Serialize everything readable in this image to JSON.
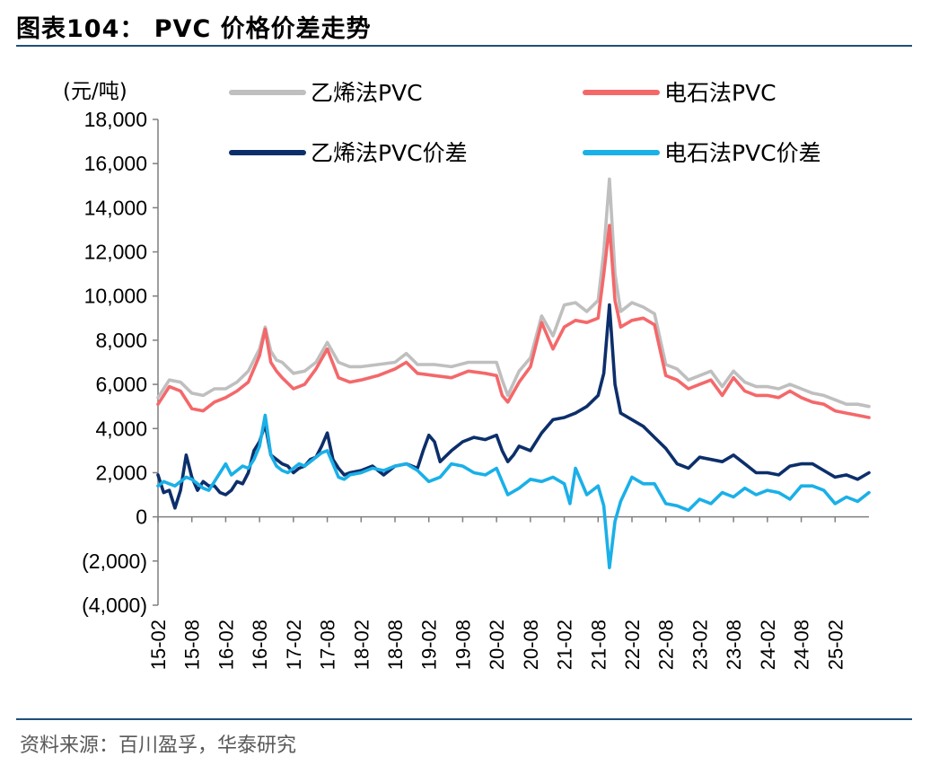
{
  "figure_title": "图表104：  PVC 价格价差走势",
  "source_note": "资料来源：百川盈孚，华泰研究",
  "chart_data": {
    "type": "line",
    "unit_label": "(元/吨)",
    "ylim": [
      -4000,
      18000
    ],
    "y_ticks": [
      18000,
      16000,
      14000,
      12000,
      10000,
      8000,
      6000,
      4000,
      2000,
      0,
      -2000,
      -4000
    ],
    "y_tick_labels": [
      "18,000",
      "16,000",
      "14,000",
      "12,000",
      "10,000",
      "8,000",
      "6,000",
      "4,000",
      "2,000",
      "0",
      "(2,000)",
      "(4,000)"
    ],
    "x_start": "2015-02",
    "x_end": "2025-08",
    "x_tick_labels": [
      "15-02",
      "15-08",
      "16-02",
      "16-08",
      "17-02",
      "17-08",
      "18-02",
      "18-08",
      "19-02",
      "19-08",
      "20-02",
      "20-08",
      "21-02",
      "21-08",
      "22-02",
      "22-08",
      "23-02",
      "23-08",
      "24-02",
      "24-08",
      "25-02"
    ],
    "legend": [
      {
        "name": "乙烯法PVC",
        "color": "#bfbfbf"
      },
      {
        "name": "电石法PVC",
        "color": "#f4686a"
      },
      {
        "name": "乙烯法PVC价差",
        "color": "#0c2f6b"
      },
      {
        "name": "电石法PVC价差",
        "color": "#1ab0e8"
      }
    ],
    "series": [
      {
        "name": "乙烯法PVC",
        "color": "#bfbfbf",
        "x": [
          "2015-02",
          "2015-04",
          "2015-06",
          "2015-08",
          "2015-10",
          "2015-12",
          "2016-02",
          "2016-04",
          "2016-06",
          "2016-08",
          "2016-09",
          "2016-10",
          "2016-11",
          "2016-12",
          "2017-02",
          "2017-04",
          "2017-06",
          "2017-08",
          "2017-10",
          "2017-12",
          "2018-02",
          "2018-05",
          "2018-08",
          "2018-10",
          "2018-12",
          "2019-03",
          "2019-06",
          "2019-09",
          "2019-12",
          "2020-02",
          "2020-03",
          "2020-04",
          "2020-06",
          "2020-08",
          "2020-10",
          "2020-12",
          "2021-02",
          "2021-04",
          "2021-06",
          "2021-08",
          "2021-09",
          "2021-10",
          "2021-11",
          "2021-12",
          "2022-02",
          "2022-04",
          "2022-06",
          "2022-08",
          "2022-10",
          "2022-12",
          "2023-02",
          "2023-04",
          "2023-06",
          "2023-08",
          "2023-10",
          "2023-12",
          "2024-02",
          "2024-04",
          "2024-06",
          "2024-08",
          "2024-10",
          "2024-12",
          "2025-02",
          "2025-04",
          "2025-06",
          "2025-08"
        ],
        "values": [
          5400,
          6200,
          6100,
          5600,
          5500,
          5800,
          5800,
          6100,
          6600,
          7600,
          8600,
          7500,
          7100,
          7000,
          6500,
          6600,
          7000,
          7900,
          7000,
          6800,
          6800,
          6900,
          7000,
          7400,
          6900,
          6900,
          6800,
          7000,
          7000,
          7000,
          6200,
          5500,
          6600,
          7200,
          9100,
          8200,
          9600,
          9700,
          9300,
          9800,
          12000,
          15300,
          11000,
          9300,
          9700,
          9500,
          9200,
          6900,
          6700,
          6200,
          6400,
          6600,
          5900,
          6600,
          6100,
          5900,
          5900,
          5800,
          6000,
          5800,
          5600,
          5500,
          5300,
          5100,
          5100,
          5000
        ]
      },
      {
        "name": "电石法PVC",
        "color": "#f4686a",
        "x": [
          "2015-02",
          "2015-04",
          "2015-06",
          "2015-08",
          "2015-10",
          "2015-12",
          "2016-02",
          "2016-04",
          "2016-06",
          "2016-08",
          "2016-09",
          "2016-10",
          "2016-11",
          "2016-12",
          "2017-02",
          "2017-04",
          "2017-06",
          "2017-08",
          "2017-10",
          "2017-12",
          "2018-02",
          "2018-05",
          "2018-08",
          "2018-10",
          "2018-12",
          "2019-03",
          "2019-06",
          "2019-09",
          "2019-12",
          "2020-02",
          "2020-03",
          "2020-04",
          "2020-06",
          "2020-08",
          "2020-10",
          "2020-12",
          "2021-02",
          "2021-04",
          "2021-06",
          "2021-08",
          "2021-09",
          "2021-10",
          "2021-11",
          "2021-12",
          "2022-02",
          "2022-04",
          "2022-06",
          "2022-08",
          "2022-10",
          "2022-12",
          "2023-02",
          "2023-04",
          "2023-06",
          "2023-08",
          "2023-10",
          "2023-12",
          "2024-02",
          "2024-04",
          "2024-06",
          "2024-08",
          "2024-10",
          "2024-12",
          "2025-02",
          "2025-04",
          "2025-06",
          "2025-08"
        ],
        "values": [
          5100,
          5900,
          5700,
          4900,
          4800,
          5200,
          5400,
          5700,
          6100,
          7300,
          8500,
          7000,
          6600,
          6300,
          5800,
          6000,
          6700,
          7600,
          6300,
          6100,
          6200,
          6400,
          6700,
          7000,
          6500,
          6400,
          6300,
          6600,
          6500,
          6400,
          5500,
          5200,
          6100,
          6800,
          8800,
          7600,
          8600,
          8900,
          8800,
          9000,
          11000,
          13200,
          9800,
          8600,
          8900,
          9000,
          8700,
          6400,
          6200,
          5800,
          6000,
          6200,
          5500,
          6300,
          5700,
          5500,
          5500,
          5400,
          5700,
          5400,
          5200,
          5100,
          4800,
          4700,
          4600,
          4500
        ]
      },
      {
        "name": "乙烯法PVC价差",
        "color": "#0c2f6b",
        "x": [
          "2015-02",
          "2015-03",
          "2015-04",
          "2015-05",
          "2015-06",
          "2015-07",
          "2015-08",
          "2015-09",
          "2015-10",
          "2015-11",
          "2015-12",
          "2016-01",
          "2016-02",
          "2016-03",
          "2016-04",
          "2016-05",
          "2016-06",
          "2016-07",
          "2016-08",
          "2016-09",
          "2016-10",
          "2016-11",
          "2016-12",
          "2017-01",
          "2017-02",
          "2017-03",
          "2017-04",
          "2017-05",
          "2017-06",
          "2017-07",
          "2017-08",
          "2017-09",
          "2017-10",
          "2017-11",
          "2017-12",
          "2018-02",
          "2018-04",
          "2018-06",
          "2018-08",
          "2018-10",
          "2018-12",
          "2019-01",
          "2019-02",
          "2019-03",
          "2019-04",
          "2019-06",
          "2019-08",
          "2019-10",
          "2019-12",
          "2020-02",
          "2020-03",
          "2020-04",
          "2020-05",
          "2020-06",
          "2020-08",
          "2020-10",
          "2020-12",
          "2021-02",
          "2021-04",
          "2021-06",
          "2021-08",
          "2021-09",
          "2021-10",
          "2021-11",
          "2021-12",
          "2022-02",
          "2022-04",
          "2022-06",
          "2022-08",
          "2022-10",
          "2022-12",
          "2023-02",
          "2023-04",
          "2023-06",
          "2023-08",
          "2023-10",
          "2023-12",
          "2024-02",
          "2024-04",
          "2024-06",
          "2024-08",
          "2024-10",
          "2024-12",
          "2025-02",
          "2025-04",
          "2025-06",
          "2025-08"
        ],
        "values": [
          1900,
          1100,
          1200,
          400,
          1200,
          2800,
          1800,
          1200,
          1600,
          1400,
          1400,
          1100,
          1000,
          1200,
          1600,
          1500,
          2000,
          3000,
          3400,
          4200,
          2800,
          2600,
          2400,
          2300,
          2000,
          2200,
          2300,
          2600,
          2700,
          3200,
          3800,
          2600,
          2200,
          1900,
          2000,
          2100,
          2300,
          1900,
          2300,
          2400,
          2200,
          3000,
          3700,
          3400,
          2500,
          3000,
          3400,
          3600,
          3500,
          3700,
          3000,
          2500,
          2800,
          3200,
          3000,
          3800,
          4400,
          4500,
          4700,
          5000,
          5500,
          6500,
          9600,
          6000,
          4700,
          4400,
          4100,
          3600,
          3100,
          2400,
          2200,
          2700,
          2600,
          2500,
          2800,
          2400,
          2000,
          2000,
          1900,
          2300,
          2400,
          2400,
          2100,
          1800,
          1900,
          1700,
          2000
        ]
      },
      {
        "name": "电石法PVC价差",
        "color": "#1ab0e8",
        "x": [
          "2015-02",
          "2015-03",
          "2015-04",
          "2015-05",
          "2015-06",
          "2015-07",
          "2015-08",
          "2015-09",
          "2015-10",
          "2015-11",
          "2015-12",
          "2016-01",
          "2016-02",
          "2016-03",
          "2016-04",
          "2016-05",
          "2016-06",
          "2016-07",
          "2016-08",
          "2016-09",
          "2016-10",
          "2016-11",
          "2016-12",
          "2017-01",
          "2017-02",
          "2017-03",
          "2017-04",
          "2017-05",
          "2017-06",
          "2017-07",
          "2017-08",
          "2017-09",
          "2017-10",
          "2017-11",
          "2017-12",
          "2018-02",
          "2018-04",
          "2018-06",
          "2018-08",
          "2018-10",
          "2018-12",
          "2019-02",
          "2019-04",
          "2019-06",
          "2019-08",
          "2019-10",
          "2019-12",
          "2020-02",
          "2020-03",
          "2020-04",
          "2020-06",
          "2020-08",
          "2020-10",
          "2020-12",
          "2021-02",
          "2021-03",
          "2021-04",
          "2021-06",
          "2021-08",
          "2021-09",
          "2021-10",
          "2021-11",
          "2021-12",
          "2022-02",
          "2022-04",
          "2022-06",
          "2022-08",
          "2022-10",
          "2022-12",
          "2023-02",
          "2023-04",
          "2023-06",
          "2023-08",
          "2023-10",
          "2023-12",
          "2024-02",
          "2024-04",
          "2024-06",
          "2024-08",
          "2024-10",
          "2024-12",
          "2025-02",
          "2025-04",
          "2025-06",
          "2025-08"
        ],
        "values": [
          1400,
          1600,
          1500,
          1400,
          1600,
          1800,
          1700,
          1500,
          1300,
          1200,
          1600,
          2000,
          2400,
          1900,
          2100,
          2300,
          2200,
          2600,
          3200,
          4600,
          2800,
          2300,
          2100,
          2000,
          2200,
          2400,
          2300,
          2500,
          2700,
          2900,
          3000,
          2400,
          1800,
          1700,
          1900,
          2000,
          2200,
          2100,
          2300,
          2400,
          2100,
          1600,
          1800,
          2400,
          2300,
          2000,
          1900,
          2200,
          1600,
          1000,
          1300,
          1700,
          1600,
          1800,
          1500,
          600,
          2200,
          1000,
          1400,
          500,
          -2300,
          -200,
          700,
          1800,
          1500,
          1500,
          600,
          500,
          300,
          800,
          600,
          1100,
          900,
          1300,
          1000,
          1200,
          1100,
          800,
          1400,
          1400,
          1200,
          600,
          900,
          700,
          1100
        ]
      }
    ]
  }
}
